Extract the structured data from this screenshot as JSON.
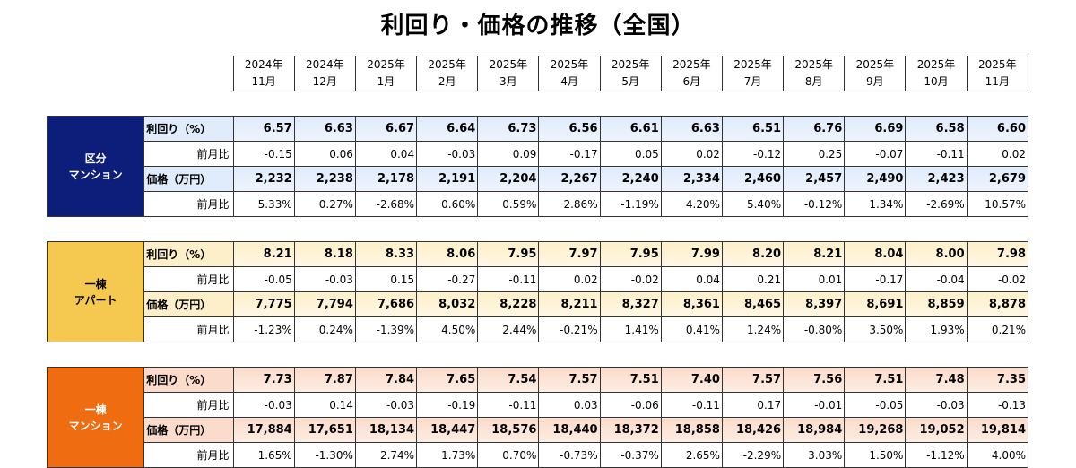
{
  "title": "利回り・価格の推移（全国）",
  "months": [
    {
      "year": "2024年",
      "month": "11月"
    },
    {
      "year": "2024年",
      "month": "12月"
    },
    {
      "year": "2025年",
      "month": "1月"
    },
    {
      "year": "2025年",
      "month": "2月"
    },
    {
      "year": "2025年",
      "month": "3月"
    },
    {
      "year": "2025年",
      "month": "4月"
    },
    {
      "year": "2025年",
      "month": "5月"
    },
    {
      "year": "2025年",
      "month": "6月"
    },
    {
      "year": "2025年",
      "month": "7月"
    },
    {
      "year": "2025年",
      "month": "8月"
    },
    {
      "year": "2025年",
      "month": "9月"
    },
    {
      "year": "2025年",
      "month": "10月"
    },
    {
      "year": "2025年",
      "month": "11月"
    }
  ],
  "groups": [
    {
      "name_line1": "区分",
      "name_line2": "マンション",
      "color": "#0d1d7a",
      "rows": [
        {
          "label": "利回り（%）",
          "main": true,
          "values": [
            "6.57",
            "6.63",
            "6.67",
            "6.64",
            "6.73",
            "6.56",
            "6.61",
            "6.63",
            "6.51",
            "6.76",
            "6.69",
            "6.58",
            "6.60"
          ]
        },
        {
          "label": "前月比",
          "main": false,
          "values": [
            "-0.15",
            "0.06",
            "0.04",
            "-0.03",
            "0.09",
            "-0.17",
            "0.05",
            "0.02",
            "-0.12",
            "0.25",
            "-0.07",
            "-0.11",
            "0.02"
          ]
        },
        {
          "label": "価格（万円）",
          "main": true,
          "values": [
            "2,232",
            "2,238",
            "2,178",
            "2,191",
            "2,204",
            "2,267",
            "2,240",
            "2,334",
            "2,460",
            "2,457",
            "2,490",
            "2,423",
            "2,679"
          ]
        },
        {
          "label": "前月比",
          "main": false,
          "values": [
            "5.33%",
            "0.27%",
            "-2.68%",
            "0.60%",
            "0.59%",
            "2.86%",
            "-1.19%",
            "4.20%",
            "5.40%",
            "-0.12%",
            "1.34%",
            "-2.69%",
            "10.57%"
          ]
        }
      ]
    },
    {
      "name_line1": "一棟",
      "name_line2": "アパート",
      "color": "#f5c94f",
      "rows": [
        {
          "label": "利回り（%）",
          "main": true,
          "values": [
            "8.21",
            "8.18",
            "8.33",
            "8.06",
            "7.95",
            "7.97",
            "7.95",
            "7.99",
            "8.20",
            "8.21",
            "8.04",
            "8.00",
            "7.98"
          ]
        },
        {
          "label": "前月比",
          "main": false,
          "values": [
            "-0.05",
            "-0.03",
            "0.15",
            "-0.27",
            "-0.11",
            "0.02",
            "-0.02",
            "0.04",
            "0.21",
            "0.01",
            "-0.17",
            "-0.04",
            "-0.02"
          ]
        },
        {
          "label": "価格（万円）",
          "main": true,
          "values": [
            "7,775",
            "7,794",
            "7,686",
            "8,032",
            "8,228",
            "8,211",
            "8,327",
            "8,361",
            "8,465",
            "8,397",
            "8,691",
            "8,859",
            "8,878"
          ]
        },
        {
          "label": "前月比",
          "main": false,
          "values": [
            "-1.23%",
            "0.24%",
            "-1.39%",
            "4.50%",
            "2.44%",
            "-0.21%",
            "1.41%",
            "0.41%",
            "1.24%",
            "-0.80%",
            "3.50%",
            "1.93%",
            "0.21%"
          ]
        }
      ]
    },
    {
      "name_line1": "一棟",
      "name_line2": "マンション",
      "color": "#ef6d10",
      "rows": [
        {
          "label": "利回り（%）",
          "main": true,
          "values": [
            "7.73",
            "7.87",
            "7.84",
            "7.65",
            "7.54",
            "7.57",
            "7.51",
            "7.40",
            "7.57",
            "7.56",
            "7.51",
            "7.48",
            "7.35"
          ]
        },
        {
          "label": "前月比",
          "main": false,
          "values": [
            "-0.03",
            "0.14",
            "-0.03",
            "-0.19",
            "-0.11",
            "0.03",
            "-0.06",
            "-0.11",
            "0.17",
            "-0.01",
            "-0.05",
            "-0.03",
            "-0.13"
          ]
        },
        {
          "label": "価格（万円）",
          "main": true,
          "values": [
            "17,884",
            "17,651",
            "18,134",
            "18,447",
            "18,576",
            "18,440",
            "18,372",
            "18,858",
            "18,426",
            "18,984",
            "19,268",
            "19,052",
            "19,814"
          ]
        },
        {
          "label": "前月比",
          "main": false,
          "values": [
            "1.65%",
            "-1.30%",
            "2.74%",
            "1.73%",
            "0.70%",
            "-0.73%",
            "-0.37%",
            "2.65%",
            "-2.29%",
            "3.03%",
            "1.50%",
            "-1.12%",
            "4.00%"
          ]
        }
      ]
    }
  ]
}
